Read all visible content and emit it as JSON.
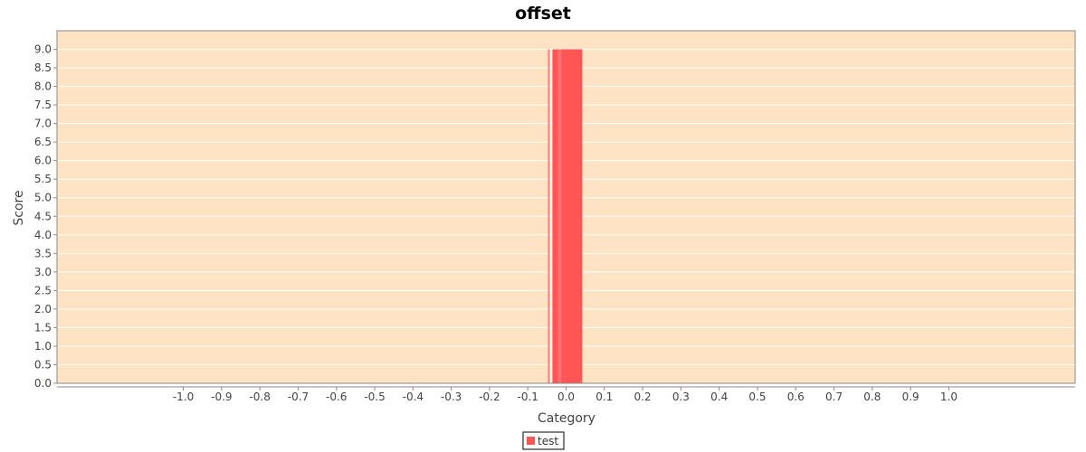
{
  "chart_data": {
    "type": "bar",
    "title": "offset",
    "xlabel": "Category",
    "ylabel": "Score",
    "x_ticks": [
      "-1.0",
      "-0.9",
      "-0.8",
      "-0.7",
      "-0.6",
      "-0.5",
      "-0.4",
      "-0.3",
      "-0.2",
      "-0.1",
      "0.0",
      "0.1",
      "0.2",
      "0.3",
      "0.4",
      "0.5",
      "0.6",
      "0.7",
      "0.8",
      "0.9",
      "1.0"
    ],
    "y_ticks": [
      "0.0",
      "0.5",
      "1.0",
      "1.5",
      "2.0",
      "2.5",
      "3.0",
      "3.5",
      "4.0",
      "4.5",
      "5.0",
      "5.5",
      "6.0",
      "6.5",
      "7.0",
      "7.5",
      "8.0",
      "8.5",
      "9.0"
    ],
    "ylim": [
      0,
      9.5
    ],
    "xlim": [
      -1.33,
      1.33
    ],
    "grid": true,
    "legend_position": "bottom-center",
    "series": [
      {
        "name": "test",
        "x": [
          0.0
        ],
        "values": [
          9.0
        ],
        "color": "#ff5555"
      }
    ],
    "colors": {
      "plot_background": "#fde2c3",
      "gridline": "#ffffff",
      "bar": "#ff5555"
    }
  }
}
